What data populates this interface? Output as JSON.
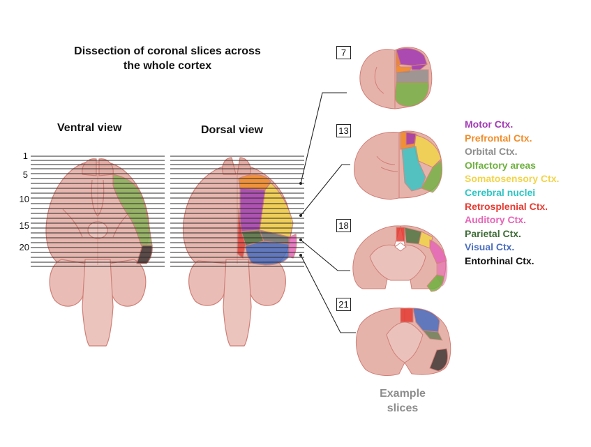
{
  "title_line1": "Dissection of coronal slices across",
  "title_line2": "the whole cortex",
  "views": {
    "ventral": "Ventral view",
    "dorsal": "Dorsal view"
  },
  "slice_numbers": [
    "1",
    "5",
    "10",
    "15",
    "20"
  ],
  "example_slices": [
    "7",
    "13",
    "18",
    "21"
  ],
  "example_label_line1": "Example",
  "example_label_line2": "slices",
  "legend": [
    {
      "label": "Motor Ctx.",
      "color": "#a13ab4"
    },
    {
      "label": "Prefrontal Ctx.",
      "color": "#f28c28"
    },
    {
      "label": "Orbital Ctx.",
      "color": "#8e8e8e"
    },
    {
      "label": "Olfactory areas",
      "color": "#6fb13f"
    },
    {
      "label": "Somatosensory Ctx.",
      "color": "#f2d44a"
    },
    {
      "label": "Cerebral nuclei",
      "color": "#2ec5c5"
    },
    {
      "label": "Retrosplenial Ctx.",
      "color": "#e53b32"
    },
    {
      "label": "Auditory Ctx.",
      "color": "#e665b8"
    },
    {
      "label": "Parietal Ctx.",
      "color": "#3d6b35"
    },
    {
      "label": "Visual Ctx.",
      "color": "#4a6ec0"
    },
    {
      "label": "Entorhinal Ctx.",
      "color": "#111111"
    }
  ]
}
